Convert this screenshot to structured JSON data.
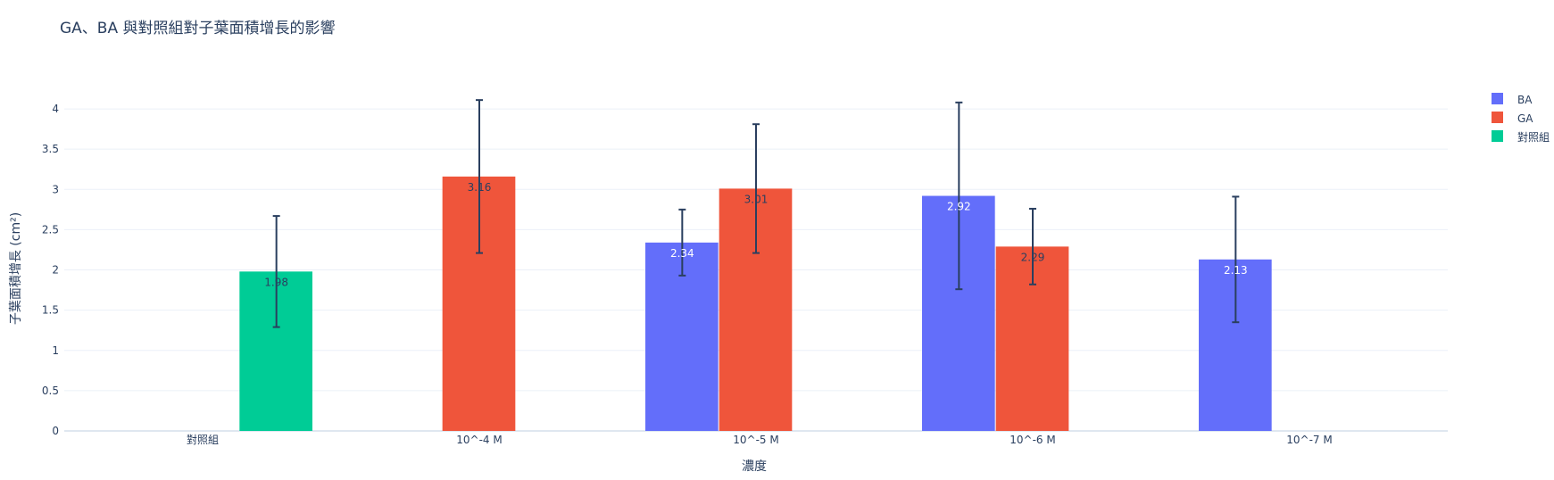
{
  "chart_data": {
    "type": "bar",
    "title": "GA、BA 與對照組對子葉面積增長的影響",
    "xlabel": "濃度",
    "ylabel": "子葉面積增長 (cm²)",
    "categories": [
      "對照組",
      "10^-4 M",
      "10^-5 M",
      "10^-6 M",
      "10^-7 M"
    ],
    "ylim": [
      0,
      4.3
    ],
    "yticks": [
      0,
      0.5,
      1,
      1.5,
      2,
      2.5,
      3,
      3.5,
      4
    ],
    "ytick_labels": [
      "0",
      "0.5",
      "1",
      "1.5",
      "2",
      "2.5",
      "3",
      "3.5",
      "4"
    ],
    "grid": true,
    "legend_position": "top-right",
    "series": [
      {
        "name": "BA",
        "color": "#636efa",
        "label_color": "#ffffff",
        "values": [
          null,
          null,
          2.34,
          2.92,
          2.13
        ],
        "labels": [
          "",
          "",
          "2.34",
          "2.92",
          "2.13"
        ],
        "errors": [
          null,
          null,
          0.41,
          1.16,
          0.78
        ]
      },
      {
        "name": "GA",
        "color": "#ef553b",
        "label_color": "#2a3f5f",
        "values": [
          null,
          3.16,
          3.01,
          2.29,
          null
        ],
        "labels": [
          "",
          "3.16",
          "3.01",
          "2.29",
          ""
        ],
        "errors": [
          null,
          0.95,
          0.8,
          0.47,
          null
        ]
      },
      {
        "name": "對照組",
        "color": "#00cc96",
        "label_color": "#2a3f5f",
        "values": [
          1.98,
          null,
          null,
          null,
          null
        ],
        "labels": [
          "1.98",
          "",
          "",
          "",
          ""
        ],
        "errors": [
          0.69,
          null,
          null,
          null,
          null
        ]
      }
    ],
    "error_bar_color": "#2a3f5f"
  }
}
